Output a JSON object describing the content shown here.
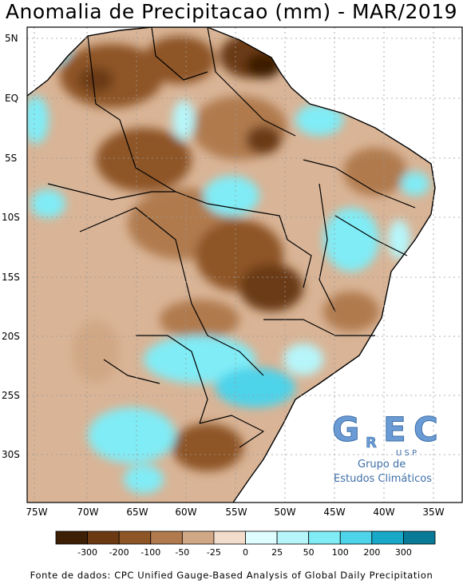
{
  "title": "Anomalia de Precipitacao (mm) - MAR/2019",
  "source": "Fonte de dados: CPC Unified Gauge-Based Analysis of Global Daily Precipitation",
  "axes": {
    "lat_labels": [
      "5N",
      "EQ",
      "5S",
      "10S",
      "15S",
      "20S",
      "25S",
      "30S"
    ],
    "lon_labels": [
      "75W",
      "70W",
      "65W",
      "60W",
      "55W",
      "50W",
      "45W",
      "40W",
      "35W"
    ]
  },
  "legend": {
    "labels": [
      "-300",
      "-200",
      "-100",
      "-50",
      "-25",
      "0",
      "25",
      "50",
      "100",
      "200",
      "300"
    ],
    "colors": [
      "#3d1f06",
      "#6b3a12",
      "#8e5526",
      "#b07a4e",
      "#d0a886",
      "#f2dccb",
      "#dffcff",
      "#b6f6fb",
      "#80ecf6",
      "#4dd3ea",
      "#18a8c8",
      "#087a98"
    ]
  },
  "logo": {
    "letters": [
      "G",
      "R",
      "E",
      "C"
    ],
    "sub": "U S P",
    "line1": "Grupo de",
    "line2": "Estudos Climáticos"
  },
  "colors": {
    "ocean": "#ffffff",
    "land_default": "#d9b496",
    "border": "#000000",
    "grid": "#9a9a9a"
  },
  "chart_data": {
    "type": "heatmap",
    "title": "Anomalia de Precipitacao (mm) - MAR/2019",
    "x_range_lon": [
      -76,
      -32
    ],
    "y_range_lat": [
      6,
      -34
    ],
    "units": "mm",
    "bins": [
      -300,
      -200,
      -100,
      -50,
      -25,
      0,
      25,
      50,
      100,
      200,
      300
    ]
  }
}
